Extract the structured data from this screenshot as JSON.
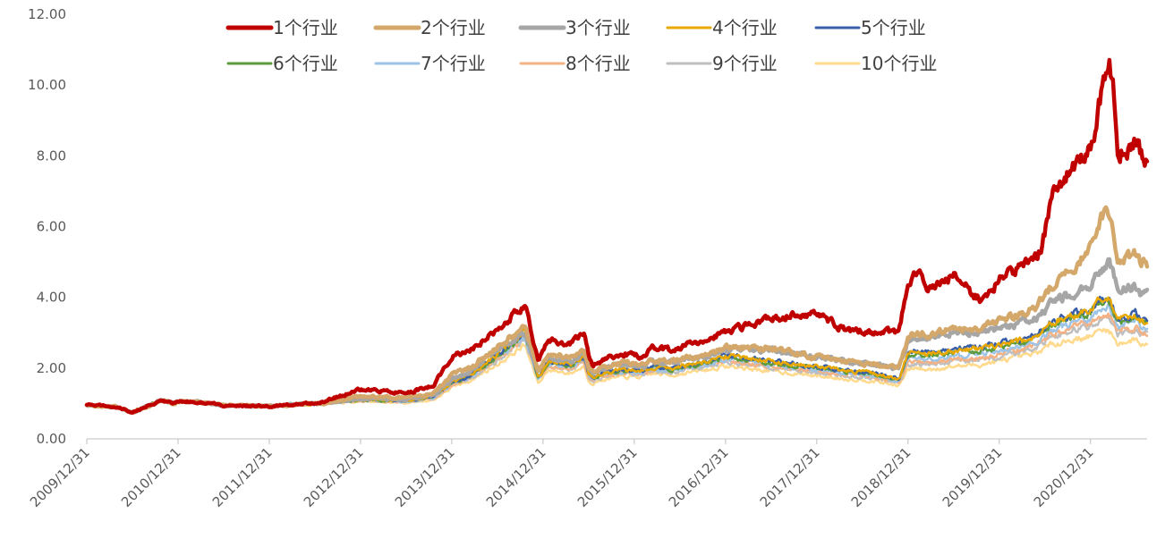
{
  "chart_data": {
    "type": "line",
    "title": "",
    "xlabel": "",
    "ylabel": "",
    "ylim": [
      0,
      12
    ],
    "y_ticks": [
      "0.00",
      "2.00",
      "4.00",
      "6.00",
      "8.00",
      "10.00",
      "12.00"
    ],
    "x_ticks": [
      "2009/12/31",
      "2010/12/31",
      "2011/12/31",
      "2012/12/31",
      "2013/12/31",
      "2014/12/31",
      "2015/12/31",
      "2016/12/31",
      "2017/12/31",
      "2018/12/31",
      "2019/12/31",
      "2020/12/31"
    ],
    "x_range": [
      "2009/12/31",
      "2021/08"
    ],
    "grid": false,
    "legend_placement": "top",
    "series_order_note": "drawn bottom-to-top as 10 → 1",
    "series": [
      {
        "name": "1个行业",
        "color": "#C00000",
        "width": 4.5
      },
      {
        "name": "2个行业",
        "color": "#D4A86A",
        "width": 4.5
      },
      {
        "name": "3个行业",
        "color": "#A6A6A6",
        "width": 4.5
      },
      {
        "name": "4个行业",
        "color": "#E8A800",
        "width": 2.5
      },
      {
        "name": "5个行业",
        "color": "#3A5FA8",
        "width": 2.5
      },
      {
        "name": "6个行业",
        "color": "#5B9B3C",
        "width": 2.5
      },
      {
        "name": "7个行业",
        "color": "#9DC3E6",
        "width": 2.5
      },
      {
        "name": "8个行业",
        "color": "#F4B183",
        "width": 2.5
      },
      {
        "name": "9个行业",
        "color": "#BFBFBF",
        "width": 2.5
      },
      {
        "name": "10个行业",
        "color": "#FFD98C",
        "width": 2.5
      }
    ],
    "shared_t": [
      0,
      0.3,
      0.5,
      0.6,
      0.8,
      0.95,
      1.0,
      1.2,
      1.5,
      2.0,
      2.3,
      2.6,
      3.0,
      3.5,
      3.8,
      4.0,
      4.2,
      4.5,
      4.8,
      4.95,
      5.05,
      5.3,
      5.45,
      5.5,
      5.55,
      5.7,
      5.9,
      6.1,
      6.2,
      6.4,
      6.6,
      6.8,
      7.0,
      7.5,
      8.0,
      8.3,
      8.6,
      8.9,
      9.0,
      9.1,
      9.2,
      9.5,
      9.8,
      10.0,
      10.2,
      10.4,
      10.45,
      10.6,
      10.8,
      11.0,
      11.1,
      11.2,
      11.25,
      11.3,
      11.5,
      11.55,
      11.65
    ],
    "series_values": {
      "1个行业": [
        0.95,
        0.92,
        0.75,
        0.85,
        1.08,
        1.0,
        1.05,
        1.05,
        0.95,
        0.92,
        0.98,
        1.05,
        1.4,
        1.3,
        1.5,
        2.35,
        2.5,
        3.1,
        3.8,
        2.2,
        2.8,
        2.7,
        2.95,
        2.4,
        2.1,
        2.3,
        2.4,
        2.3,
        2.6,
        2.5,
        2.65,
        2.8,
        3.0,
        3.4,
        3.55,
        3.1,
        3.0,
        3.05,
        4.4,
        4.8,
        4.3,
        4.6,
        3.9,
        4.5,
        4.8,
        5.1,
        5.3,
        7.0,
        7.6,
        8.2,
        9.5,
        10.7,
        9.8,
        8.0,
        8.4,
        8.1,
        7.8
      ],
      "2个行业": [
        0.95,
        0.92,
        0.75,
        0.85,
        1.08,
        1.0,
        1.05,
        1.05,
        0.95,
        0.92,
        0.98,
        1.0,
        1.2,
        1.15,
        1.3,
        1.8,
        2.0,
        2.6,
        3.2,
        1.9,
        2.4,
        2.3,
        2.55,
        2.0,
        1.9,
        2.05,
        2.15,
        2.1,
        2.25,
        2.2,
        2.3,
        2.4,
        2.6,
        2.55,
        2.3,
        2.2,
        2.1,
        2.0,
        2.85,
        3.0,
        2.95,
        3.1,
        3.15,
        3.35,
        3.5,
        3.7,
        3.9,
        4.4,
        4.8,
        5.4,
        6.2,
        6.4,
        5.8,
        5.0,
        5.25,
        5.0,
        4.9
      ],
      "3个行业": [
        0.95,
        0.92,
        0.75,
        0.85,
        1.08,
        1.0,
        1.05,
        1.05,
        0.95,
        0.92,
        0.98,
        1.0,
        1.15,
        1.12,
        1.25,
        1.7,
        1.9,
        2.5,
        3.0,
        1.85,
        2.3,
        2.2,
        2.45,
        1.95,
        1.85,
        2.0,
        2.1,
        2.05,
        2.2,
        2.15,
        2.25,
        2.35,
        2.55,
        2.5,
        2.3,
        2.2,
        2.1,
        2.0,
        2.8,
        2.9,
        2.85,
        3.0,
        3.0,
        3.15,
        3.25,
        3.4,
        3.5,
        3.9,
        4.1,
        4.3,
        4.8,
        5.0,
        4.6,
        4.2,
        4.3,
        4.1,
        4.15
      ],
      "4个行业": [
        0.95,
        0.92,
        0.75,
        0.85,
        1.08,
        1.0,
        1.05,
        1.05,
        0.95,
        0.92,
        0.98,
        1.0,
        1.12,
        1.08,
        1.2,
        1.6,
        1.8,
        2.4,
        3.05,
        1.75,
        2.2,
        2.1,
        2.35,
        1.85,
        1.75,
        1.9,
        1.95,
        1.95,
        2.05,
        2.0,
        2.1,
        2.2,
        2.35,
        2.2,
        2.05,
        1.95,
        1.85,
        1.7,
        2.4,
        2.45,
        2.4,
        2.5,
        2.55,
        2.65,
        2.75,
        2.9,
        3.0,
        3.3,
        3.5,
        3.6,
        4.0,
        4.05,
        3.7,
        3.4,
        3.5,
        3.35,
        3.3
      ],
      "5个行业": [
        0.95,
        0.92,
        0.75,
        0.85,
        1.08,
        1.0,
        1.05,
        1.05,
        0.95,
        0.92,
        0.98,
        1.0,
        1.12,
        1.08,
        1.2,
        1.6,
        1.8,
        2.4,
        3.0,
        1.75,
        2.2,
        2.1,
        2.35,
        1.85,
        1.75,
        1.9,
        1.95,
        1.95,
        2.05,
        2.0,
        2.1,
        2.2,
        2.35,
        2.2,
        2.05,
        1.95,
        1.85,
        1.7,
        2.45,
        2.5,
        2.45,
        2.55,
        2.6,
        2.7,
        2.8,
        2.95,
        3.05,
        3.35,
        3.5,
        3.65,
        3.95,
        4.0,
        3.7,
        3.4,
        3.55,
        3.45,
        3.4
      ],
      "6个行业": [
        0.95,
        0.92,
        0.75,
        0.85,
        1.08,
        1.0,
        1.05,
        1.05,
        0.95,
        0.92,
        0.98,
        1.0,
        1.1,
        1.07,
        1.18,
        1.58,
        1.78,
        2.35,
        2.95,
        1.72,
        2.15,
        2.05,
        2.3,
        1.82,
        1.72,
        1.87,
        1.92,
        1.92,
        2.02,
        1.97,
        2.07,
        2.15,
        2.3,
        2.15,
        2.0,
        1.9,
        1.82,
        1.67,
        2.35,
        2.4,
        2.35,
        2.45,
        2.5,
        2.6,
        2.7,
        2.85,
        2.95,
        3.25,
        3.4,
        3.55,
        3.85,
        3.9,
        3.6,
        3.3,
        3.45,
        3.35,
        3.3
      ],
      "7个行业": [
        0.95,
        0.92,
        0.75,
        0.85,
        1.08,
        1.0,
        1.05,
        1.05,
        0.95,
        0.92,
        0.98,
        1.0,
        1.1,
        1.06,
        1.17,
        1.55,
        1.75,
        2.3,
        2.9,
        1.7,
        2.12,
        2.02,
        2.25,
        1.8,
        1.7,
        1.85,
        1.9,
        1.88,
        1.98,
        1.93,
        2.03,
        2.1,
        2.25,
        2.1,
        1.95,
        1.85,
        1.78,
        1.63,
        2.25,
        2.3,
        2.25,
        2.35,
        2.4,
        2.5,
        2.6,
        2.75,
        2.85,
        3.1,
        3.25,
        3.4,
        3.65,
        3.7,
        3.4,
        3.15,
        3.3,
        3.2,
        3.15
      ],
      "8个行业": [
        0.95,
        0.92,
        0.75,
        0.85,
        1.08,
        1.0,
        1.05,
        1.05,
        0.95,
        0.92,
        0.98,
        1.0,
        1.08,
        1.05,
        1.15,
        1.52,
        1.72,
        2.25,
        2.85,
        1.68,
        2.08,
        1.98,
        2.2,
        1.77,
        1.68,
        1.82,
        1.87,
        1.85,
        1.95,
        1.9,
        2.0,
        2.07,
        2.2,
        2.05,
        1.9,
        1.82,
        1.75,
        1.6,
        2.15,
        2.2,
        2.15,
        2.25,
        2.3,
        2.4,
        2.5,
        2.65,
        2.75,
        3.0,
        3.15,
        3.3,
        3.5,
        3.55,
        3.3,
        3.05,
        3.15,
        3.05,
        3.0
      ],
      "9个行业": [
        0.95,
        0.92,
        0.75,
        0.85,
        1.08,
        1.0,
        1.05,
        1.05,
        0.95,
        0.92,
        0.98,
        1.0,
        1.08,
        1.04,
        1.14,
        1.5,
        1.7,
        2.2,
        2.8,
        1.65,
        2.05,
        1.95,
        2.18,
        1.75,
        1.66,
        1.8,
        1.85,
        1.83,
        1.92,
        1.88,
        1.97,
        2.05,
        2.17,
        2.02,
        1.88,
        1.8,
        1.73,
        1.58,
        2.1,
        2.15,
        2.1,
        2.2,
        2.25,
        2.35,
        2.45,
        2.6,
        2.7,
        2.9,
        3.05,
        3.2,
        3.35,
        3.4,
        3.15,
        2.95,
        3.05,
        2.95,
        2.9
      ],
      "10个行业": [
        0.95,
        0.92,
        0.75,
        0.85,
        1.08,
        1.0,
        1.05,
        1.05,
        0.95,
        0.92,
        0.98,
        1.0,
        1.05,
        1.02,
        1.1,
        1.45,
        1.65,
        2.1,
        2.65,
        1.55,
        1.95,
        1.85,
        2.05,
        1.65,
        1.58,
        1.7,
        1.75,
        1.75,
        1.85,
        1.8,
        1.88,
        1.95,
        2.05,
        1.92,
        1.78,
        1.7,
        1.65,
        1.5,
        1.95,
        2.0,
        1.95,
        2.05,
        2.1,
        2.2,
        2.3,
        2.4,
        2.5,
        2.7,
        2.8,
        2.9,
        3.05,
        3.1,
        2.85,
        2.7,
        2.8,
        2.7,
        2.65
      ]
    }
  }
}
